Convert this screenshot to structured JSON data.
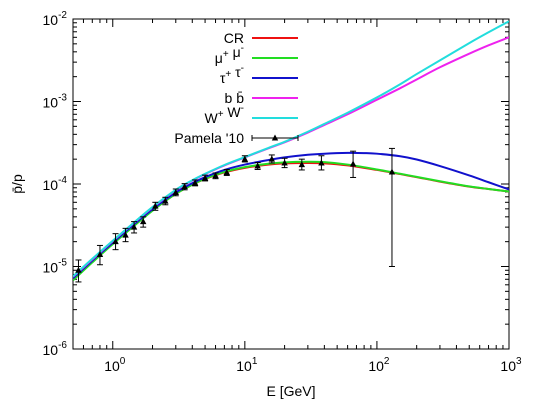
{
  "chart_data": {
    "type": "line",
    "xlabel": "E [GeV]",
    "ylabel": "p̄/p",
    "x_scale": "log",
    "y_scale": "log",
    "xlim": [
      0.5,
      1000
    ],
    "ylim": [
      1e-06,
      0.01
    ],
    "x_ticks": [
      {
        "value": 1,
        "mantissa": "10",
        "exp": "0"
      },
      {
        "value": 10,
        "mantissa": "10",
        "exp": "1"
      },
      {
        "value": 100,
        "mantissa": "10",
        "exp": "2"
      },
      {
        "value": 1000,
        "mantissa": "10",
        "exp": "3"
      }
    ],
    "y_ticks": [
      {
        "value": 1e-06,
        "mantissa": "10",
        "exp": "-6"
      },
      {
        "value": 1e-05,
        "mantissa": "10",
        "exp": "-5"
      },
      {
        "value": 0.0001,
        "mantissa": "10",
        "exp": "-4"
      },
      {
        "value": 0.001,
        "mantissa": "10",
        "exp": "-3"
      },
      {
        "value": 0.01,
        "mantissa": "10",
        "exp": "-2"
      }
    ],
    "grid": false,
    "legend_position": "top-left",
    "series": [
      {
        "name": "CR",
        "legend": [
          {
            "t": "CR"
          }
        ],
        "color": "#ee1111",
        "x": [
          0.5,
          0.7,
          1,
          1.5,
          2,
          3,
          4,
          5,
          7,
          10,
          15,
          20,
          30,
          40,
          60,
          100,
          150,
          200,
          300,
          500,
          700,
          1000
        ],
        "y": [
          7e-06,
          1.15e-05,
          1.9e-05,
          3.3e-05,
          4.8e-05,
          7.6e-05,
          9.8e-05,
          0.000115,
          0.000138,
          0.000157,
          0.000172,
          0.000178,
          0.00018,
          0.000178,
          0.000168,
          0.000148,
          0.000132,
          0.000121,
          0.000107,
          9.3e-05,
          8.7e-05,
          8.1e-05
        ]
      },
      {
        "name": "μ⁺ μ⁻",
        "legend": [
          {
            "t": "μ"
          },
          {
            "t": "+",
            "sup": true
          },
          {
            "t": " μ"
          },
          {
            "t": "-",
            "sup": true
          }
        ],
        "color": "#22dd22",
        "x": [
          0.5,
          0.7,
          1,
          1.5,
          2,
          3,
          4,
          5,
          7,
          10,
          15,
          20,
          30,
          40,
          60,
          100,
          150,
          200,
          300,
          500,
          700,
          1000
        ],
        "y": [
          6.8e-06,
          1.12e-05,
          1.87e-05,
          3.25e-05,
          4.75e-05,
          7.6e-05,
          9.8e-05,
          0.000116,
          0.00014,
          0.00016,
          0.000176,
          0.000183,
          0.000186,
          0.000184,
          0.000172,
          0.00015,
          0.000133,
          0.000122,
          0.000108,
          9.35e-05,
          8.7e-05,
          8.1e-05
        ]
      },
      {
        "name": "τ⁺ τ⁻",
        "legend": [
          {
            "t": "τ"
          },
          {
            "t": "+",
            "sup": true
          },
          {
            "t": " τ"
          },
          {
            "t": "-",
            "sup": true
          }
        ],
        "color": "#1111cc",
        "x": [
          0.5,
          0.7,
          1,
          1.5,
          2,
          3,
          4,
          5,
          7,
          10,
          15,
          20,
          30,
          40,
          60,
          80,
          100,
          150,
          200,
          300,
          500,
          700,
          1000
        ],
        "y": [
          7.2e-06,
          1.18e-05,
          1.95e-05,
          3.4e-05,
          4.95e-05,
          7.9e-05,
          0.000102,
          0.000121,
          0.000148,
          0.000172,
          0.000195,
          0.00021,
          0.000226,
          0.000233,
          0.000238,
          0.000237,
          0.000233,
          0.000217,
          0.000198,
          0.000165,
          0.000127,
          0.000105,
          8.6e-05
        ]
      },
      {
        "name": "b b̄",
        "legend": [
          {
            "t": "b b̄"
          }
        ],
        "color": "#ee22ee",
        "x": [
          0.5,
          0.7,
          1,
          1.5,
          2,
          3,
          4,
          5,
          7,
          10,
          15,
          20,
          30,
          40,
          60,
          100,
          150,
          200,
          300,
          500,
          700,
          1000
        ],
        "y": [
          7.5e-06,
          1.22e-05,
          2.03e-05,
          3.55e-05,
          5.2e-05,
          8.4e-05,
          0.00011,
          0.000132,
          0.000168,
          0.00021,
          0.00027,
          0.00032,
          0.00042,
          0.00052,
          0.0007,
          0.00105,
          0.00145,
          0.00185,
          0.0026,
          0.0038,
          0.0048,
          0.006
        ]
      },
      {
        "name": "W⁺ W⁻",
        "legend": [
          {
            "t": "W"
          },
          {
            "t": "+",
            "sup": true
          },
          {
            "t": " W"
          },
          {
            "t": "-",
            "sup": true
          }
        ],
        "color": "#22dddd",
        "x": [
          0.5,
          0.7,
          1,
          1.5,
          2,
          3,
          4,
          5,
          7,
          10,
          15,
          20,
          30,
          40,
          60,
          100,
          150,
          200,
          300,
          500,
          700,
          1000
        ],
        "y": [
          7.6e-06,
          1.24e-05,
          2.05e-05,
          3.58e-05,
          5.25e-05,
          8.5e-05,
          0.000111,
          0.000133,
          0.00017,
          0.000212,
          0.000273,
          0.000325,
          0.00043,
          0.000535,
          0.00073,
          0.00112,
          0.00162,
          0.00215,
          0.00315,
          0.0051,
          0.0069,
          0.0094
        ]
      }
    ],
    "data_points": {
      "name": "Pamela '10",
      "legend": [
        {
          "t": "Pamela '10"
        }
      ],
      "color": "#000000",
      "points": [
        {
          "x": 0.55,
          "y": 9e-06,
          "lo": 6.5e-06,
          "hi": 1.2e-05
        },
        {
          "x": 0.8,
          "y": 1.4e-05,
          "lo": 1.05e-05,
          "hi": 1.8e-05
        },
        {
          "x": 1.05,
          "y": 2e-05,
          "lo": 1.6e-05,
          "hi": 2.5e-05
        },
        {
          "x": 1.25,
          "y": 2.4e-05,
          "lo": 2e-05,
          "hi": 2.9e-05
        },
        {
          "x": 1.45,
          "y": 3e-05,
          "lo": 2.55e-05,
          "hi": 3.5e-05
        },
        {
          "x": 1.7,
          "y": 3.5e-05,
          "lo": 3e-05,
          "hi": 4e-05
        },
        {
          "x": 2.1,
          "y": 5.4e-05,
          "lo": 4.8e-05,
          "hi": 6e-05
        },
        {
          "x": 2.5,
          "y": 6.2e-05,
          "lo": 5.6e-05,
          "hi": 6.9e-05
        },
        {
          "x": 3.0,
          "y": 7.9e-05,
          "lo": 7.2e-05,
          "hi": 8.7e-05
        },
        {
          "x": 3.5,
          "y": 9.3e-05,
          "lo": 8.5e-05,
          "hi": 0.000101
        },
        {
          "x": 4.2,
          "y": 0.000103,
          "lo": 9.5e-05,
          "hi": 0.000112
        },
        {
          "x": 5.0,
          "y": 0.000118,
          "lo": 0.000109,
          "hi": 0.000128
        },
        {
          "x": 6.0,
          "y": 0.000126,
          "lo": 0.000116,
          "hi": 0.000136
        },
        {
          "x": 7.3,
          "y": 0.000138,
          "lo": 0.000127,
          "hi": 0.00015
        },
        {
          "x": 10.0,
          "y": 0.0002,
          "lo": 0.000185,
          "hi": 0.00022
        },
        {
          "x": 12.5,
          "y": 0.000165,
          "lo": 0.00015,
          "hi": 0.000182
        },
        {
          "x": 16.0,
          "y": 0.0002,
          "lo": 0.00018,
          "hi": 0.000225
        },
        {
          "x": 20.0,
          "y": 0.00018,
          "lo": 0.000158,
          "hi": 0.000205
        },
        {
          "x": 27.0,
          "y": 0.000172,
          "lo": 0.000148,
          "hi": 0.0002
        },
        {
          "x": 38.0,
          "y": 0.00018,
          "lo": 0.000148,
          "hi": 0.00022
        },
        {
          "x": 66.0,
          "y": 0.000175,
          "lo": 0.00012,
          "hi": 0.00025
        },
        {
          "x": 130.0,
          "y": 0.00014,
          "lo": 1e-05,
          "hi": 0.00027
        }
      ]
    }
  }
}
